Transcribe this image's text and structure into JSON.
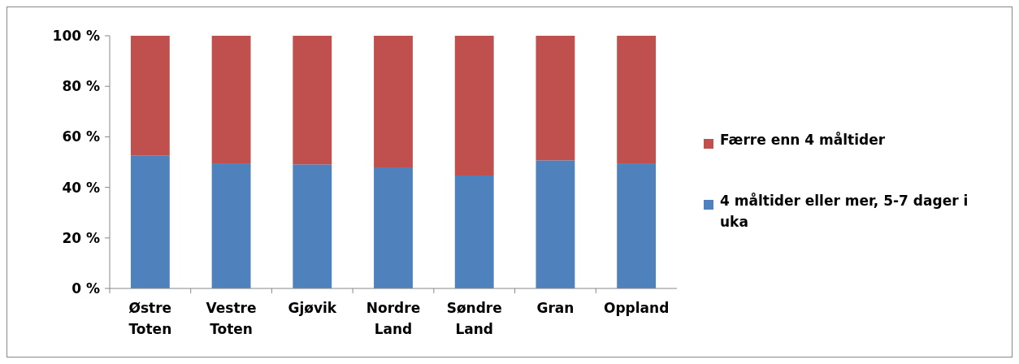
{
  "chart_data": {
    "type": "bar",
    "stacked": true,
    "categories": [
      "Østre Toten",
      "Vestre Toten",
      "Gjøvik",
      "Nordre Land",
      "Søndre Land",
      "Gran",
      "Oppland"
    ],
    "series": [
      {
        "name": "4 måltider eller mer, 5-7 dager i uka",
        "color": "#4f81bd",
        "values": [
          52.5,
          49.5,
          49.1,
          47.9,
          44.7,
          50.7,
          49.5
        ]
      },
      {
        "name": "Færre enn 4 måltider",
        "color": "#c0504d",
        "values": [
          47.5,
          50.5,
          50.9,
          52.1,
          55.3,
          49.3,
          50.5
        ]
      }
    ],
    "ylim": [
      0,
      100
    ],
    "yticks": [
      {
        "value": 0,
        "label": "0 %"
      },
      {
        "value": 20,
        "label": "20 %"
      },
      {
        "value": 40,
        "label": "40 %"
      },
      {
        "value": 60,
        "label": "60 %"
      },
      {
        "value": 80,
        "label": "80 %"
      },
      {
        "value": 100,
        "label": "100 %"
      }
    ],
    "grid": false,
    "legend": "right"
  }
}
